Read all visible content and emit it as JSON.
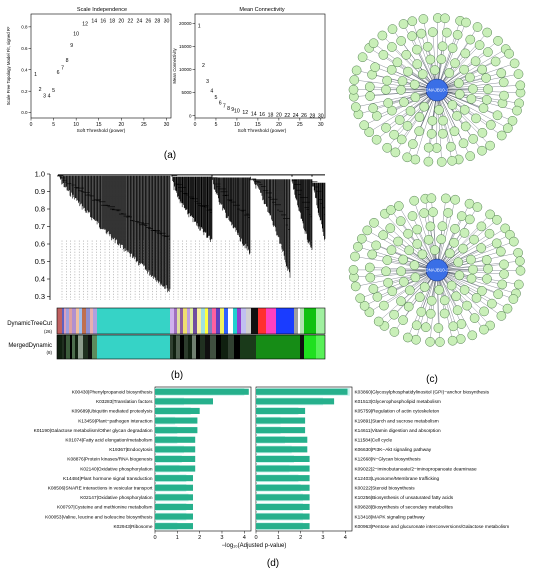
{
  "figure": {
    "panel_labels": {
      "a": "(a)",
      "b": "(b)",
      "c": "(c)",
      "d": "(d)"
    }
  },
  "panel_a": {
    "scale_independence": {
      "title": "Scale Independence",
      "ylabel": "Scale Free Topology Model Fit, signed R²",
      "xlabel": "Soft Threshold (power)",
      "xticks": [
        "0",
        "5",
        "10",
        "15",
        "20",
        "25",
        "30"
      ],
      "yticks": [
        "0.8",
        "0.6",
        "0.4",
        "0.2",
        "0.0"
      ],
      "xlim": [
        0,
        31
      ],
      "ylim": [
        -0.05,
        0.92
      ],
      "points": [
        {
          "label": "1",
          "x": 1,
          "y": 0.36
        },
        {
          "label": "2",
          "x": 2,
          "y": 0.22
        },
        {
          "label": "3",
          "x": 3,
          "y": 0.16
        },
        {
          "label": "4",
          "x": 4,
          "y": 0.16
        },
        {
          "label": "5",
          "x": 5,
          "y": 0.21
        },
        {
          "label": "6",
          "x": 6,
          "y": 0.38
        },
        {
          "label": "7",
          "x": 7,
          "y": 0.42
        },
        {
          "label": "8",
          "x": 8,
          "y": 0.49
        },
        {
          "label": "9",
          "x": 9,
          "y": 0.63
        },
        {
          "label": "10",
          "x": 10,
          "y": 0.74
        },
        {
          "label": "12",
          "x": 12,
          "y": 0.83
        },
        {
          "label": "14",
          "x": 14,
          "y": 0.86
        },
        {
          "label": "16",
          "x": 16,
          "y": 0.86
        },
        {
          "label": "18",
          "x": 18,
          "y": 0.86
        },
        {
          "label": "20",
          "x": 20,
          "y": 0.86
        },
        {
          "label": "22",
          "x": 22,
          "y": 0.86
        },
        {
          "label": "24",
          "x": 24,
          "y": 0.86
        },
        {
          "label": "26",
          "x": 26,
          "y": 0.86
        },
        {
          "label": "28",
          "x": 28,
          "y": 0.86
        },
        {
          "label": "30",
          "x": 30,
          "y": 0.86
        }
      ]
    },
    "mean_connectivity": {
      "title": "Mean Connectivity",
      "ylabel": "Mean Connectivity",
      "xlabel": "Soft Threshold (power)",
      "xticks": [
        "0",
        "5",
        "10",
        "15",
        "20",
        "25",
        "30"
      ],
      "yticks": [
        "20000",
        "15000",
        "10000",
        "5000",
        "0"
      ],
      "xlim": [
        0,
        31
      ],
      "ylim": [
        -500,
        22000
      ],
      "points": [
        {
          "label": "1",
          "x": 1,
          "y": 19500
        },
        {
          "label": "2",
          "x": 2,
          "y": 11000
        },
        {
          "label": "3",
          "x": 3,
          "y": 7500
        },
        {
          "label": "4",
          "x": 4,
          "y": 5400
        },
        {
          "label": "5",
          "x": 5,
          "y": 4000
        },
        {
          "label": "6",
          "x": 6,
          "y": 2900
        },
        {
          "label": "7",
          "x": 7,
          "y": 2200
        },
        {
          "label": "8",
          "x": 8,
          "y": 1700
        },
        {
          "label": "9",
          "x": 9,
          "y": 1400
        },
        {
          "label": "10",
          "x": 10,
          "y": 1100
        },
        {
          "label": "12",
          "x": 12,
          "y": 750
        },
        {
          "label": "14",
          "x": 14,
          "y": 520
        },
        {
          "label": "16",
          "x": 16,
          "y": 380
        },
        {
          "label": "18",
          "x": 18,
          "y": 290
        },
        {
          "label": "20",
          "x": 20,
          "y": 220
        },
        {
          "label": "22",
          "x": 22,
          "y": 170
        },
        {
          "label": "24",
          "x": 24,
          "y": 140
        },
        {
          "label": "26",
          "x": 26,
          "y": 110
        },
        {
          "label": "28",
          "x": 28,
          "y": 90
        },
        {
          "label": "30",
          "x": 30,
          "y": 70
        }
      ]
    }
  },
  "panel_b": {
    "yticks": [
      "1.0",
      "0.9",
      "0.8",
      "0.7",
      "0.6",
      "0.5",
      "0.4",
      "0.3"
    ],
    "ylim": [
      0.28,
      1.0
    ],
    "tracks": [
      {
        "label": "DynamicTreeCut",
        "sub": "(26)"
      },
      {
        "label": "MergedDynamic",
        "sub": "(8)"
      }
    ]
  },
  "panel_c": {
    "networks": [
      {
        "hub": "DNAJB10-1"
      },
      {
        "hub": "DNAJB10-2"
      }
    ]
  },
  "panel_d": {
    "xlabel": "−log₁₀(Adjusted p-value)",
    "left": {
      "xticks": [
        "0",
        "1",
        "2",
        "3",
        "4"
      ],
      "xlim": [
        0,
        4.3
      ],
      "terms": [
        {
          "id": "K00430",
          "name": "Phenylpropanoid biosynthesis",
          "value": 4.2,
          "bg": 4.0
        },
        {
          "id": "K03283",
          "name": "Translation factors",
          "value": 2.6,
          "bg": 1.3
        },
        {
          "id": "K09689",
          "name": "Ubiquitin mediated proteolysis",
          "value": 2.0,
          "bg": 1.6
        },
        {
          "id": "K13459",
          "name": "Plant−pathogen interaction",
          "value": 1.9,
          "bg": 0.9
        },
        {
          "id": "K01190",
          "name": "Galactose metabolism/Other glycan degradation",
          "value": 1.9,
          "bg": 1.0
        },
        {
          "id": "K01074",
          "name": "Fatty acid elongation/metabolism",
          "value": 1.8,
          "bg": 1.0
        },
        {
          "id": "K19367",
          "name": "Endocytosis",
          "value": 1.8,
          "bg": 1.3
        },
        {
          "id": "K08876",
          "name": "Protein kinases/RNA biogenesis",
          "value": 1.8,
          "bg": 1.2
        },
        {
          "id": "K02140",
          "name": "Oxidative phosphorylation",
          "value": 1.8,
          "bg": 1.1
        },
        {
          "id": "K14484",
          "name": "Plant hormone signal transduction",
          "value": 1.7,
          "bg": 1.4
        },
        {
          "id": "K08506",
          "name": "SNARE interactions in vesicular transport",
          "value": 1.7,
          "bg": 1.4
        },
        {
          "id": "K02147",
          "name": "Oxidative phosphorylation",
          "value": 1.7,
          "bg": 1.5
        },
        {
          "id": "K00797",
          "name": "Cysteine and methionine metabolism",
          "value": 1.7,
          "bg": 1.4
        },
        {
          "id": "K00053",
          "name": "Valine, leucine and isoleucine biosynthesis",
          "value": 1.7,
          "bg": 1.4
        },
        {
          "id": "K02943",
          "name": "Ribosome",
          "value": 1.7,
          "bg": 1.0
        }
      ]
    },
    "right": {
      "xticks": [
        "0",
        "1",
        "2",
        "3",
        "4"
      ],
      "xlim": [
        0,
        4.3
      ],
      "terms": [
        {
          "id": "K03860",
          "name": "Glycosylphosphatidylinositol (GPI)−anchor biosynthesis",
          "value": 4.1,
          "bg": 4.2
        },
        {
          "id": "K01513",
          "name": "Glycerophospholipid metabolism",
          "value": 3.5,
          "bg": 3.0
        },
        {
          "id": "K05759",
          "name": "Regulation of actin cytoskeleton",
          "value": 2.2,
          "bg": 1.9
        },
        {
          "id": "K19891",
          "name": "Starch and sucrose metabolism",
          "value": 2.2,
          "bg": 1.1
        },
        {
          "id": "K14611",
          "name": "Vitamin digestion and absorption",
          "value": 2.2,
          "bg": 1.1
        },
        {
          "id": "K11584",
          "name": "Cell cycle",
          "value": 2.3,
          "bg": 1.3
        },
        {
          "id": "K06630",
          "name": "PI3K−Akt signaling pathway",
          "value": 2.3,
          "bg": 1.6
        },
        {
          "id": "K12668",
          "name": "N−Glycan biosynthesis",
          "value": 2.4,
          "bg": 1.7
        },
        {
          "id": "K09022",
          "name": "2−iminobutanoate/2−iminopropanoate deaminase",
          "value": 2.4,
          "bg": 1.5
        },
        {
          "id": "K12403",
          "name": "Lysosome/Membrane trafficking",
          "value": 2.4,
          "bg": 1.9
        },
        {
          "id": "K00222",
          "name": "Steroid biosynthesis",
          "value": 2.4,
          "bg": 2.0
        },
        {
          "id": "K10256",
          "name": "Biosynthesis of unsaturated fatty acids",
          "value": 2.4,
          "bg": 2.1
        },
        {
          "id": "K09828",
          "name": "Biosynthesis of secondary metabolites",
          "value": 2.4,
          "bg": 2.1
        },
        {
          "id": "K13418",
          "name": "MAPK signaling pathway",
          "value": 2.4,
          "bg": 2.1
        },
        {
          "id": "K00963",
          "name": "Pentose and glucuronate interconversions/Galactose metabolism",
          "value": 2.4,
          "bg": 2.1
        }
      ]
    }
  },
  "colors": {
    "bar": "#26b08c",
    "bar_bg": "#c6f2ec",
    "node": "#c9efb8",
    "node_stroke": "#2c5e2c",
    "hub": "#3a6fe6",
    "edge": "#1f2a3a",
    "turquoise": "#36d3c6"
  }
}
